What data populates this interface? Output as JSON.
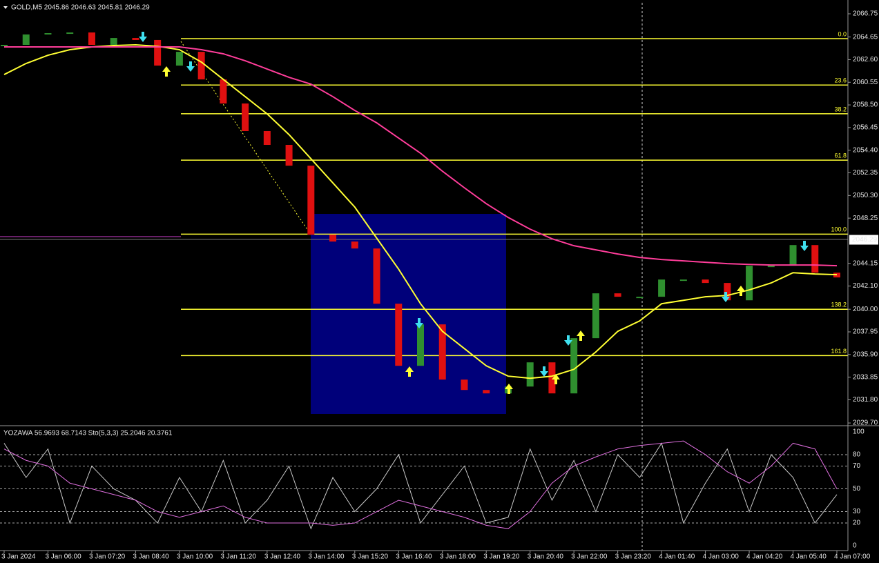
{
  "chart_data": [
    {
      "type": "bar",
      "title": "GOLD,M5  2045.86 2046.63 2045.81 2046.29",
      "categories": [
        "3 Jan 2024",
        null,
        "3 Jan 06:00",
        null,
        "3 Jan 07:20",
        null,
        "3 Jan 08:40",
        null,
        "3 Jan 10:00",
        null,
        "3 Jan 11:20",
        null,
        "3 Jan 12:40",
        null,
        "3 Jan 14:00",
        null,
        "3 Jan 15:20",
        null,
        "3 Jan 16:40",
        null,
        "3 Jan 18:00",
        null,
        "3 Jan 19:20",
        null,
        "3 Jan 20:40",
        null,
        "3 Jan 22:00",
        null,
        "3 Jan 23:20",
        null,
        "4 Jan 01:40",
        null,
        "4 Jan 03:00",
        null,
        "4 Jan 04:20",
        null,
        "4 Jan 05:40",
        null,
        "4 Jan 07:00"
      ],
      "values": [
        2063.94,
        2064.88,
        2065.0,
        2065.06,
        2063.94,
        2064.56,
        2064.38,
        2062.06,
        2063.31,
        2060.81,
        2058.63,
        2056.13,
        2054.88,
        2053.0,
        2046.75,
        2046.13,
        2045.5,
        2040.5,
        2034.88,
        2038.63,
        2033.63,
        2032.69,
        2032.38,
        2033.0,
        2035.19,
        2032.38,
        2037.38,
        2041.44,
        2041.13,
        2041.13,
        2042.69,
        2042.69,
        2042.38,
        2040.81,
        2043.94,
        2043.94,
        2045.81,
        2043.31,
        2042.88
      ],
      "up_color": "#2f8f2f",
      "down_color": "#e01010",
      "overlays": [
        {
          "color": "#ffff33",
          "values": [
            2061.25,
            2062.25,
            2063.0,
            2063.5,
            2063.75,
            2063.88,
            2063.94,
            2063.81,
            2063.5,
            2062.38,
            2060.81,
            2059.25,
            2057.69,
            2055.81,
            2053.63,
            2051.44,
            2049.25,
            2046.44,
            2043.63,
            2040.5,
            2038.0,
            2036.44,
            2034.88,
            2033.94,
            2033.75,
            2033.94,
            2034.56,
            2036.13,
            2038.0,
            2038.94,
            2040.5,
            2040.81,
            2041.13,
            2041.25,
            2041.75,
            2042.38,
            2043.31,
            2043.19,
            2043.13
          ]
        },
        {
          "color": "#ff3d9a",
          "values": [
            2063.75,
            2063.75,
            2063.75,
            2063.75,
            2063.75,
            2063.75,
            2063.75,
            2063.75,
            2063.75,
            2063.5,
            2063.13,
            2062.5,
            2061.75,
            2061.0,
            2060.38,
            2059.25,
            2058.0,
            2056.88,
            2055.5,
            2054.13,
            2052.5,
            2051.0,
            2049.56,
            2048.31,
            2047.25,
            2046.38,
            2045.75,
            2045.38,
            2045.0,
            2044.69,
            2044.5,
            2044.38,
            2044.25,
            2044.13,
            2044.06,
            2044.0,
            2044.0,
            2044.0,
            2043.94
          ]
        }
      ],
      "fib_levels": [
        {
          "level": {
            "value": 0,
            "label": "0.0"
          },
          "price": 2064.5
        },
        {
          "level": 23.6,
          "price": 2060.3
        },
        {
          "level": 38.2,
          "price": 2057.7
        },
        {
          "level": 61.8,
          "price": 2053.5
        },
        {
          "level": {
            "value": 100,
            "label": "100.0"
          },
          "price": 2046.8
        },
        {
          "level": 138.2,
          "price": 2040.0
        },
        {
          "level": 161.8,
          "price": 2035.8
        }
      ],
      "fib_color": "#ffff33",
      "current_price": 2046.29,
      "ylim": [
        2029.58,
        2068.0
      ],
      "yticks": [
        2066.75,
        2064.65,
        {
          "value": 2062.6,
          "label": "2062.60"
        },
        2060.55,
        {
          "value": 2058.5,
          "label": "2058.50"
        },
        2056.45,
        {
          "value": 2054.4,
          "label": "2054.40"
        },
        2052.35,
        {
          "value": 2050.3,
          "label": "2050.30"
        },
        2048.25,
        2044.15,
        {
          "value": 2042.1,
          "label": "2042.10"
        },
        {
          "value": 2040,
          "label": "2040.00"
        },
        2037.95,
        {
          "value": 2035.9,
          "label": "2035.90"
        },
        2033.85,
        {
          "value": 2031.8,
          "label": "2031.80"
        },
        {
          "value": 2029.7,
          "label": "2029.70"
        }
      ]
    },
    {
      "type": "line",
      "title": "YOZAWA 56.9693 68.7143  Sto(5,3,3) 25.2046 20.3761",
      "series": [
        {
          "color": "#c8c8c8",
          "values": [
            90,
            60,
            85,
            20,
            70,
            50,
            40,
            20,
            60,
            30,
            75,
            20,
            40,
            70,
            15,
            60,
            30,
            50,
            80,
            20,
            45,
            70,
            20,
            25,
            85,
            40,
            75,
            30,
            80,
            60,
            90,
            20,
            55,
            85,
            30,
            80,
            60,
            20,
            45
          ]
        },
        {
          "color": "#e070e0",
          "values": [
            85,
            75,
            70,
            55,
            50,
            45,
            40,
            30,
            25,
            30,
            35,
            25,
            20,
            20,
            20,
            18,
            20,
            30,
            40,
            35,
            30,
            25,
            18,
            15,
            30,
            55,
            70,
            78,
            85,
            88,
            90,
            92,
            80,
            65,
            55,
            70,
            90,
            85,
            50
          ]
        }
      ],
      "ylim": [
        -4.2,
        103.6
      ],
      "yticks": [
        0,
        20,
        30,
        50,
        70,
        80,
        100
      ],
      "grid": "dashed"
    }
  ]
}
